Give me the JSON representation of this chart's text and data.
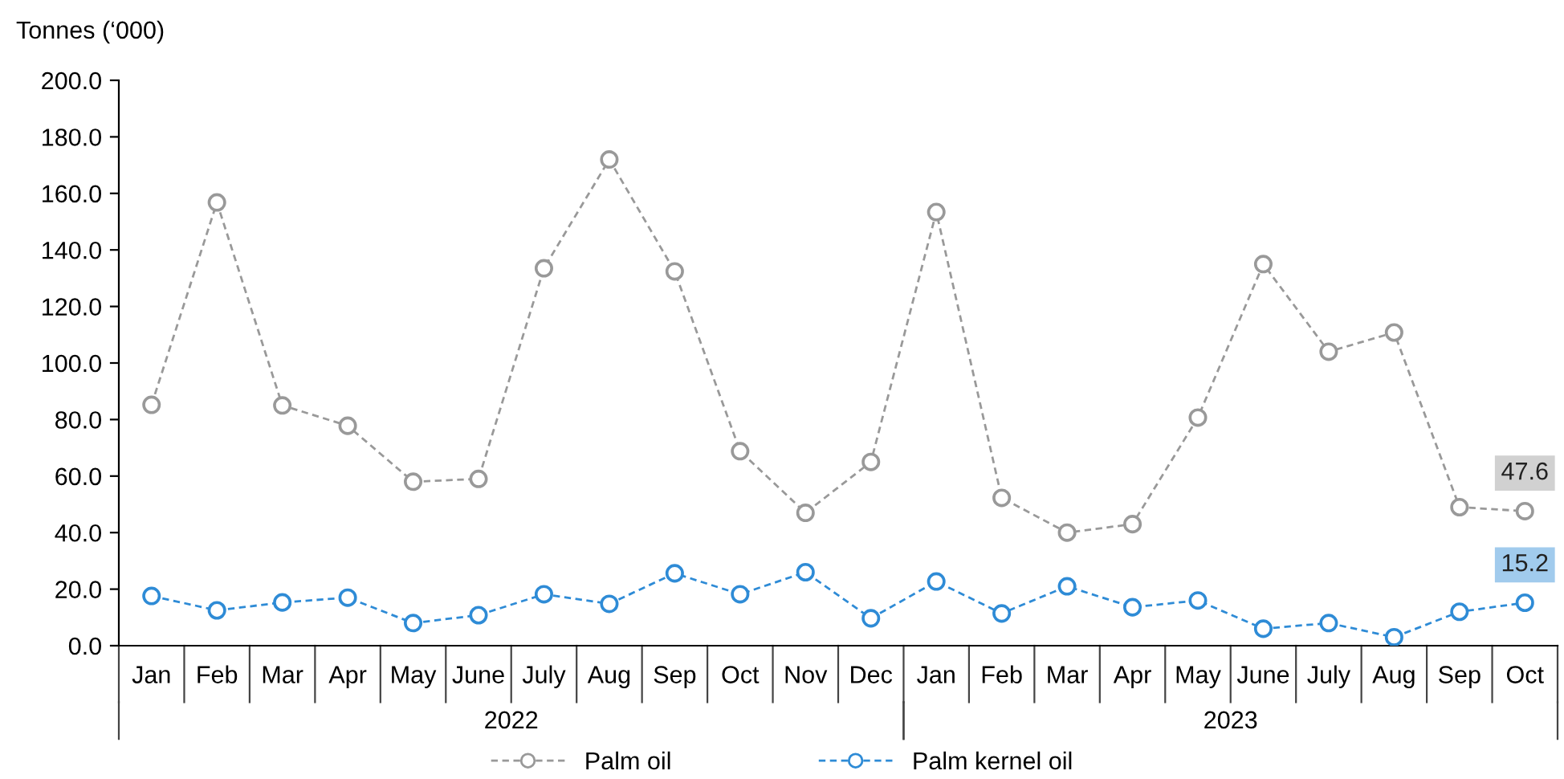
{
  "chart_data": {
    "type": "line",
    "ylabel": "Tonnes (‘000)",
    "categories": [
      "Jan",
      "Feb",
      "Mar",
      "Apr",
      "May",
      "June",
      "July",
      "Aug",
      "Sep",
      "Oct",
      "Nov",
      "Dec",
      "Jan",
      "Feb",
      "Mar",
      "Apr",
      "May",
      "June",
      "July",
      "Aug",
      "Sep",
      "Oct"
    ],
    "annotations": [
      "2022",
      "2023"
    ],
    "series": [
      {
        "name": "Palm oil",
        "color": "#999999",
        "values": [
          85.2,
          156.8,
          85,
          77.8,
          58,
          59,
          133.5,
          172,
          132.4,
          68.8,
          47,
          65,
          153.4,
          52.3,
          40,
          43,
          80.7,
          135,
          104,
          110.8,
          49,
          47.6
        ],
        "value_labels": [
          null,
          null,
          null,
          null,
          null,
          null,
          null,
          null,
          null,
          null,
          null,
          null,
          null,
          null,
          null,
          null,
          null,
          null,
          null,
          null,
          null,
          "47.6"
        ]
      },
      {
        "name": "Palm kernel oil",
        "color": "#2e8bd6",
        "values": [
          17.6,
          12.5,
          15.3,
          17,
          8,
          10.8,
          18.2,
          14.8,
          25.6,
          18.2,
          26,
          9.7,
          22.7,
          11.4,
          21,
          13.6,
          16,
          6,
          8,
          3,
          12,
          15.2
        ],
        "value_labels": [
          null,
          null,
          null,
          null,
          null,
          null,
          null,
          null,
          null,
          null,
          null,
          null,
          null,
          null,
          null,
          null,
          null,
          null,
          null,
          null,
          null,
          "15.2"
        ]
      }
    ],
    "ylim": [
      0,
      200
    ],
    "yticks": [
      {
        "value": 0,
        "label": "0.0"
      },
      {
        "value": 20,
        "label": "20.0"
      },
      {
        "value": 40,
        "label": "40.0"
      },
      {
        "value": 60,
        "label": "60.0"
      },
      {
        "value": 80,
        "label": "80.0"
      },
      {
        "value": 100,
        "label": "100.0"
      },
      {
        "value": 120,
        "label": "120.0"
      },
      {
        "value": 140,
        "label": "140.0"
      },
      {
        "value": 160,
        "label": "160.0"
      },
      {
        "value": 180,
        "label": "180.0"
      },
      {
        "value": 200,
        "label": "200.0"
      }
    ],
    "grid": false,
    "legend": "bottom",
    "marker": "circle",
    "line_style": "dashed"
  }
}
